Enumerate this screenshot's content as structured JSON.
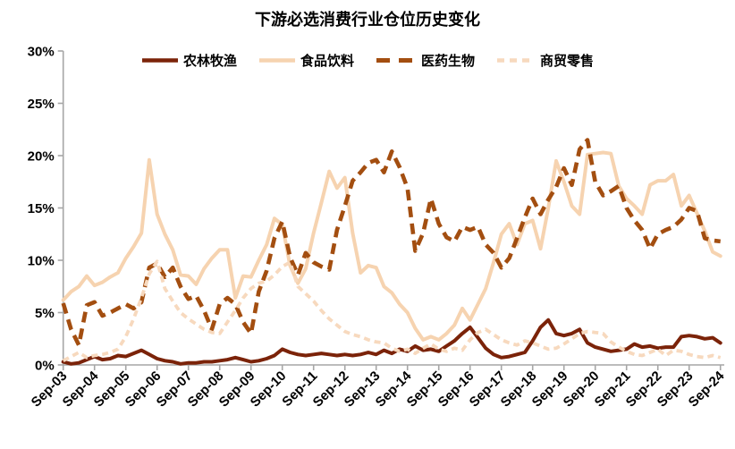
{
  "title": "下游必选消费行业仓位历史变化",
  "chart_data": {
    "type": "line",
    "title": "下游必选消费行业仓位历史变化",
    "x_tick_labels": [
      "Sep-03",
      "Sep-04",
      "Sep-05",
      "Sep-06",
      "Sep-07",
      "Sep-08",
      "Sep-09",
      "Sep-10",
      "Sep-11",
      "Sep-12",
      "Sep-13",
      "Sep-14",
      "Sep-15",
      "Sep-16",
      "Sep-17",
      "Sep-18",
      "Sep-19",
      "Sep-20",
      "Sep-21",
      "Sep-22",
      "Sep-23",
      "Sep-24"
    ],
    "points_per_year": 4,
    "x_start_label": "Sep-03",
    "y_tick_labels": [
      "30%",
      "25%",
      "20%",
      "15%",
      "10%",
      "5%",
      "0%"
    ],
    "y_tick_values": [
      30,
      25,
      20,
      15,
      10,
      5,
      0
    ],
    "ylim": [
      0,
      30
    ],
    "y_unit": "%",
    "grid": false,
    "legend_position": "top",
    "axis_color": "#a6a6a6",
    "text_color": "#000000",
    "series": [
      {
        "id": "agriculture",
        "name": "农林牧渔",
        "color": "#7B2309",
        "style": "solid",
        "values": [
          0.3,
          0.1,
          0.2,
          0.5,
          0.8,
          0.5,
          0.6,
          0.9,
          0.8,
          1.1,
          1.4,
          1.0,
          0.6,
          0.4,
          0.3,
          0.1,
          0.2,
          0.2,
          0.3,
          0.3,
          0.4,
          0.5,
          0.7,
          0.5,
          0.3,
          0.4,
          0.6,
          0.9,
          1.5,
          1.2,
          1.0,
          0.9,
          1.0,
          1.1,
          1.0,
          0.9,
          1.0,
          0.9,
          1.0,
          1.2,
          1.0,
          1.4,
          1.1,
          1.5,
          1.3,
          1.8,
          1.4,
          1.5,
          1.3,
          1.8,
          2.3,
          3.0,
          3.6,
          2.6,
          1.6,
          1.0,
          0.7,
          0.8,
          1.0,
          1.2,
          2.3,
          3.6,
          4.3,
          3.0,
          2.8,
          3.0,
          3.4,
          2.1,
          1.7,
          1.5,
          1.3,
          1.4,
          1.5,
          2.0,
          1.7,
          1.8,
          1.6,
          1.7,
          1.7,
          2.7,
          2.8,
          2.7,
          2.5,
          2.6,
          2.1
        ]
      },
      {
        "id": "food-beverage",
        "name": "食品饮料",
        "color": "#F6D3B0",
        "style": "solid",
        "values": [
          6.2,
          7.0,
          7.5,
          8.5,
          7.6,
          7.9,
          8.4,
          8.8,
          10.2,
          11.3,
          12.6,
          19.6,
          14.4,
          12.5,
          11.0,
          8.6,
          8.5,
          7.7,
          9.2,
          10.2,
          11.0,
          11.0,
          6.4,
          8.5,
          8.4,
          10.0,
          11.5,
          14.0,
          13.4,
          9.5,
          7.8,
          9.2,
          12.6,
          15.5,
          18.5,
          16.9,
          17.9,
          12.6,
          8.8,
          9.5,
          9.3,
          7.5,
          6.9,
          5.8,
          5.0,
          3.5,
          2.4,
          2.7,
          2.4,
          3.0,
          3.8,
          5.4,
          4.3,
          5.8,
          7.3,
          9.8,
          12.5,
          13.5,
          11.5,
          13.5,
          13.8,
          11.1,
          15.0,
          19.5,
          17.5,
          15.2,
          14.4,
          20.1,
          20.2,
          20.3,
          20.2,
          17.1,
          15.9,
          15.2,
          14.4,
          17.2,
          17.6,
          17.6,
          18.2,
          15.2,
          16.2,
          14.5,
          12.8,
          10.8,
          10.4
        ]
      },
      {
        "id": "pharma-biotech",
        "name": "医药生物",
        "color": "#A34E10",
        "style": "dashed",
        "values": [
          5.9,
          3.4,
          1.9,
          5.7,
          6.0,
          4.7,
          5.0,
          5.4,
          5.8,
          5.4,
          6.0,
          9.3,
          9.7,
          8.4,
          9.3,
          7.5,
          6.3,
          6.6,
          5.2,
          3.4,
          5.8,
          6.4,
          5.8,
          4.1,
          3.0,
          7.0,
          9.0,
          12.1,
          13.7,
          10.3,
          8.6,
          10.7,
          9.8,
          9.4,
          9.1,
          12.9,
          15.2,
          17.6,
          18.4,
          19.3,
          19.6,
          18.4,
          20.4,
          18.9,
          16.9,
          10.9,
          12.6,
          15.9,
          13.5,
          12.2,
          11.8,
          13.2,
          12.9,
          13.2,
          11.5,
          10.7,
          9.3,
          10.2,
          12.1,
          14.1,
          15.9,
          14.4,
          15.8,
          17.0,
          18.8,
          17.2,
          20.6,
          21.5,
          17.5,
          16.2,
          16.6,
          17.1,
          15.0,
          13.8,
          12.9,
          11.1,
          12.5,
          12.9,
          13.2,
          13.9,
          15.0,
          14.7,
          12.1,
          11.9,
          11.8
        ]
      },
      {
        "id": "commerce-retail",
        "name": "商贸零售",
        "color": "#F7D9BE",
        "style": "dashed",
        "values": [
          0.4,
          0.8,
          1.2,
          0.7,
          0.9,
          1.0,
          1.2,
          1.5,
          2.7,
          4.4,
          6.4,
          8.7,
          9.9,
          7.3,
          6.1,
          5.0,
          4.4,
          3.9,
          3.4,
          3.1,
          3.0,
          4.1,
          5.2,
          6.4,
          7.3,
          7.8,
          8.0,
          8.6,
          9.4,
          9.8,
          7.5,
          6.8,
          6.1,
          5.2,
          4.4,
          3.8,
          3.2,
          2.9,
          2.7,
          2.4,
          2.2,
          2.1,
          1.6,
          1.3,
          1.5,
          1.1,
          1.6,
          2.0,
          1.5,
          1.3,
          1.6,
          1.4,
          2.4,
          3.1,
          3.4,
          2.9,
          2.4,
          2.1,
          1.9,
          2.3,
          2.1,
          1.8,
          1.5,
          1.6,
          2.0,
          2.5,
          3.0,
          3.2,
          3.1,
          3.0,
          2.2,
          1.7,
          1.3,
          1.0,
          0.9,
          1.2,
          1.5,
          0.9,
          1.4,
          1.3,
          1.0,
          0.8,
          0.7,
          0.9,
          0.7
        ]
      }
    ]
  }
}
